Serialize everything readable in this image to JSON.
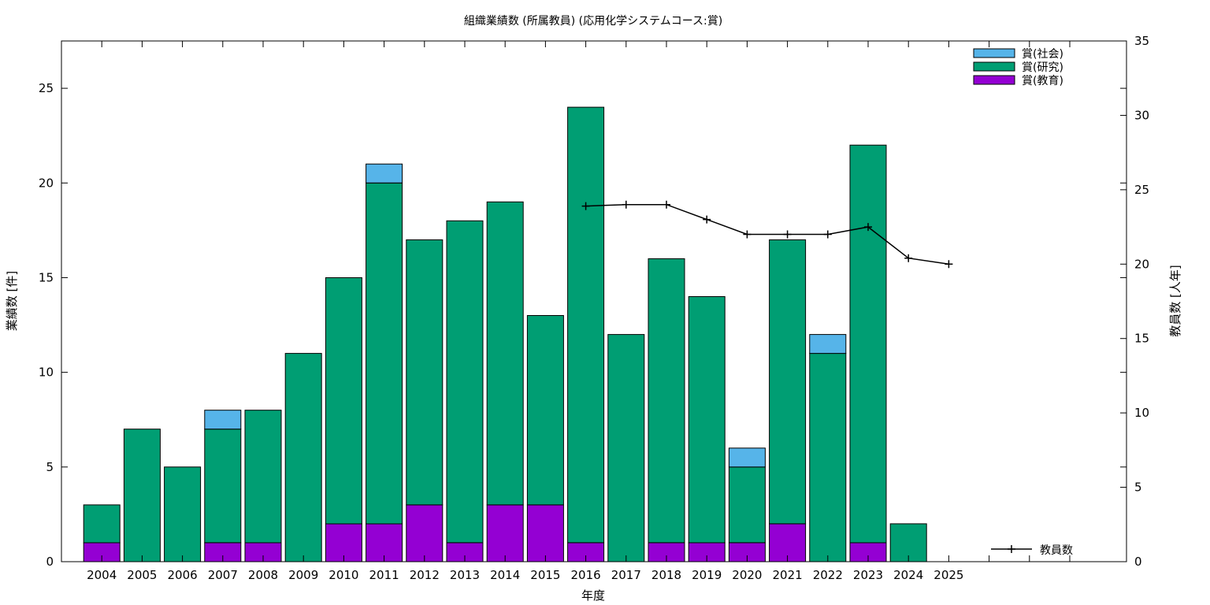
{
  "chart_data": {
    "type": "bar",
    "stacked": true,
    "title": "組織業績数 (所属教員) (応用化学システムコース:賞)",
    "xlabel": "年度",
    "ylabel": "業績数 [件]",
    "y2label": "教員数 [人年]",
    "ylim": [
      0,
      27.5
    ],
    "y2lim": [
      0,
      35
    ],
    "yticks": [
      0,
      5,
      10,
      15,
      20,
      25
    ],
    "y2ticks": [
      0,
      5,
      10,
      15,
      20,
      25,
      30,
      35
    ],
    "grid": false,
    "legend_position": "top-right",
    "categories": [
      "2004",
      "2005",
      "2006",
      "2007",
      "2008",
      "2009",
      "2010",
      "2011",
      "2012",
      "2013",
      "2014",
      "2015",
      "2016",
      "2017",
      "2018",
      "2019",
      "2020",
      "2021",
      "2022",
      "2023",
      "2024",
      "2025"
    ],
    "series": [
      {
        "name": "賞(教育)",
        "color": "#9400d3",
        "values": [
          1,
          0,
          0,
          1,
          1,
          0,
          2,
          2,
          3,
          1,
          3,
          3,
          1,
          0,
          1,
          1,
          1,
          2,
          0,
          1,
          0,
          0
        ]
      },
      {
        "name": "賞(研究)",
        "color": "#009e73",
        "values": [
          2,
          7,
          5,
          6,
          7,
          11,
          13,
          18,
          14,
          17,
          16,
          10,
          23,
          12,
          15,
          13,
          4,
          15,
          11,
          21,
          2,
          0
        ]
      },
      {
        "name": "賞(社会)",
        "color": "#56b4e9",
        "values": [
          0,
          0,
          0,
          1,
          0,
          0,
          0,
          1,
          0,
          0,
          0,
          0,
          0,
          0,
          0,
          0,
          1,
          0,
          1,
          0,
          0,
          0
        ]
      }
    ],
    "line_series": {
      "name": "教員数",
      "color": "#000000",
      "axis": "y2",
      "x": [
        "2016",
        "2017",
        "2018",
        "2019",
        "2020",
        "2021",
        "2022",
        "2023",
        "2024",
        "2025"
      ],
      "values": [
        23.9,
        24.0,
        24.0,
        23.0,
        22.0,
        22.0,
        22.0,
        22.5,
        20.4,
        20.0
      ]
    }
  }
}
